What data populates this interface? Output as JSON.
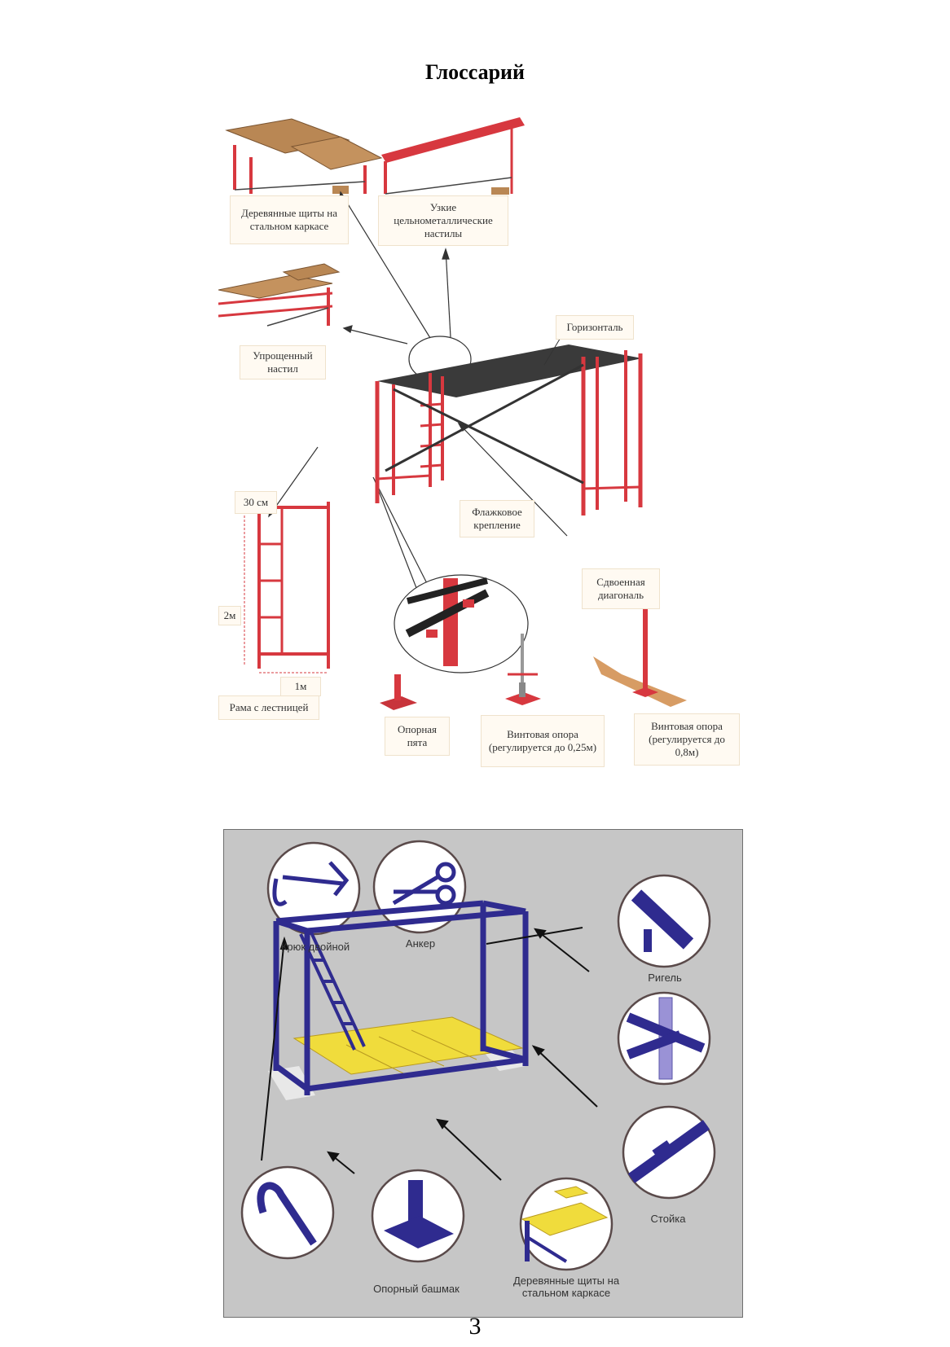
{
  "title": "Глоссарий",
  "figure1": {
    "labels": {
      "wooden_shields": "Деревянные щиты на стальном каркасе",
      "narrow_decks": "Узкие цельнометаллические настилы",
      "simplified_deck": "Упрощенный настил",
      "horizontal": "Горизонталь",
      "dim_width": "30 см",
      "dim_height": "2м",
      "dim_frame_width": "1м",
      "frame_ladder": "Рама с лестницей",
      "flag_mount": "Флажковое крепление",
      "double_diagonal": "Сдвоенная диагональ",
      "base_plate": "Опорная пята",
      "screw_support_025": "Винтовая опора (регулируется до 0,25м)",
      "screw_support_08": "Винтовая опора (регулируется до 0,8м)"
    },
    "colors": {
      "frame": "#d7383f",
      "wood": "#b98754",
      "deck": "#3a3a3a",
      "label_bg": "#fffaf2"
    }
  },
  "figure2": {
    "labels": {
      "double_hook": "Крюк двойной",
      "anchor": "Анкер",
      "crossbar": "Ригель",
      "post": "Стойка",
      "support_shoe": "Опорный башмак",
      "wooden_shields": "Деревянные щиты на стальном каркасе"
    },
    "colors": {
      "frame": "#2f2b8f",
      "deck": "#f0dc3c",
      "background": "#c6c6c6"
    }
  },
  "page_number": "3"
}
